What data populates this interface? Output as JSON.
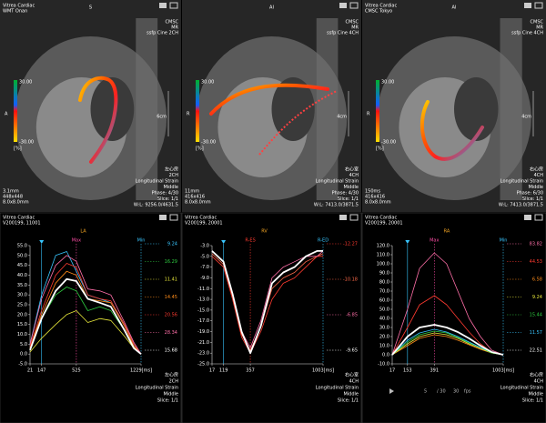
{
  "images": [
    {
      "header": [
        "Vitrea Cardiac",
        "WMT Onan"
      ],
      "orientation_top": "S",
      "orientation_left": "A",
      "info": [
        "CMSC",
        "MR",
        "ssfp Cine 2CH"
      ],
      "colorbar": [
        "30.00",
        "-30.00",
        "[%]"
      ],
      "scale": "6cm",
      "info_left": [
        "3.1mm",
        "448x448",
        "8.0x8.0mm"
      ],
      "controls": [
        "左心房",
        "2CH",
        "Longitudinal Strain",
        "Middle",
        "Phase: 4/30",
        "Slice: 1/1",
        "W:L: 9256.0/4631.5"
      ]
    },
    {
      "header": [],
      "orientation_top": "AI",
      "orientation_left": "R",
      "info": [
        "CMSC",
        "MR",
        "ssfp Cine 4CH"
      ],
      "colorbar": [
        "30.00",
        "-30.00",
        "[%]"
      ],
      "scale": "4cm",
      "info_left": [
        "11mm",
        "416x416",
        "8.0x8.0mm"
      ],
      "controls": [
        "右心室",
        "4CH",
        "Longitudinal Strain",
        "Middle",
        "Phase: 4/30",
        "Slice: 1/1",
        "W:L: 7413.0/3871.5"
      ]
    },
    {
      "header": [
        "Vitrea Cardiac",
        "CMSC Tokyo"
      ],
      "orientation_top": "AI",
      "orientation_left": "R",
      "info": [
        "CMSC",
        "MR",
        "ssfp Cine 4CH"
      ],
      "colorbar": [
        "30.00",
        "-30.00",
        "[%]"
      ],
      "scale": "4cm",
      "info_left": [
        "150ms",
        "416x416",
        "8.0x8.0mm"
      ],
      "controls": [
        "右心房",
        "4CH",
        "Longitudinal Strain",
        "Middle",
        "Phase: 6/30",
        "Slice: 1/1",
        "W:L: 7413.0/3871.5"
      ]
    }
  ],
  "chart_data": [
    {
      "type": "line",
      "title": "LA",
      "header": [
        "Vitrea Cardiac",
        "V200199, 11001"
      ],
      "x": [
        21,
        147,
        300,
        420,
        525,
        650,
        780,
        900,
        1050,
        1150,
        1229
      ],
      "xlim": [
        21,
        1229
      ],
      "xticks": [
        21,
        147,
        525,
        {
          "value": 1229,
          "label": "1229[ms]"
        }
      ],
      "ylim": [
        -5,
        55
      ],
      "yticks": [
        {
          "value": 55,
          "label": "55.0"
        },
        {
          "value": 50,
          "label": "50.0"
        },
        {
          "value": 45,
          "label": "45.0"
        },
        {
          "value": 40,
          "label": "40.0"
        },
        {
          "value": 35,
          "label": "35.0"
        },
        {
          "value": 30,
          "label": "30.0"
        },
        {
          "value": 25,
          "label": "25.0"
        },
        {
          "value": 20,
          "label": "20.0"
        },
        {
          "value": 15,
          "label": "15.0"
        },
        {
          "value": 10,
          "label": "10.0"
        },
        {
          "value": 5,
          "label": "5.0"
        },
        {
          "value": 0,
          "label": "0.0"
        },
        {
          "value": -5,
          "label": "-5.0"
        }
      ],
      "cursor": 147,
      "markers": [
        {
          "label": "Max",
          "x": 525,
          "color": "#ff4da6"
        },
        {
          "label": "Min",
          "x": 1229,
          "color": "#39c6ff"
        }
      ],
      "series": [
        {
          "name": "9.24",
          "color": "#39c6ff",
          "values": [
            5,
            30,
            50,
            52,
            42,
            30,
            28,
            26,
            15,
            5,
            0
          ]
        },
        {
          "name": "16.29",
          "color": "#2ecc40",
          "values": [
            2,
            18,
            30,
            34,
            32,
            22,
            24,
            22,
            12,
            4,
            0
          ]
        },
        {
          "name": "11.41",
          "color": "#e8e83a",
          "values": [
            1,
            8,
            15,
            20,
            22,
            16,
            18,
            17,
            9,
            3,
            0
          ]
        },
        {
          "name": "14.45",
          "color": "#ff8c1a",
          "values": [
            3,
            20,
            36,
            42,
            40,
            28,
            27,
            26,
            14,
            4,
            0
          ]
        },
        {
          "name": "20.56",
          "color": "#ff3b30",
          "values": [
            4,
            22,
            40,
            46,
            44,
            30,
            28,
            27,
            15,
            5,
            0
          ]
        },
        {
          "name": "28.34",
          "color": "#ff6fa8",
          "values": [
            5,
            28,
            45,
            50,
            47,
            33,
            32,
            30,
            16,
            6,
            0
          ]
        },
        {
          "name": "15.68",
          "color": "#ffffff",
          "values": [
            2,
            18,
            32,
            38,
            37,
            28,
            26,
            24,
            12,
            3,
            0
          ]
        }
      ],
      "footer": [
        "左心房",
        "2CH",
        "Longitudinal Strain",
        "Middle",
        "Slice: 1/1"
      ]
    },
    {
      "type": "line",
      "title": "RV",
      "header": [
        "Vitrea Cardiac",
        "V200199, 20001"
      ],
      "x": [
        17,
        119,
        200,
        280,
        357,
        450,
        550,
        650,
        750,
        850,
        950,
        1003
      ],
      "xlim": [
        17,
        1003
      ],
      "xticks": [
        17,
        119,
        357,
        {
          "value": 1003,
          "label": "1003[ms]"
        }
      ],
      "ylim": [
        -25,
        -3
      ],
      "yticks": [
        {
          "value": -3,
          "label": "-3.0"
        },
        {
          "value": -5,
          "label": "-5.0"
        },
        {
          "value": -7,
          "label": "-7.0"
        },
        {
          "value": -9,
          "label": "-9.0"
        },
        {
          "value": -11,
          "label": "-11.0"
        },
        {
          "value": -13,
          "label": "-13.0"
        },
        {
          "value": -15,
          "label": "-15.0"
        },
        {
          "value": -17,
          "label": "-17.0"
        },
        {
          "value": -19,
          "label": "-19.0"
        },
        {
          "value": -21,
          "label": "-21.0"
        },
        {
          "value": -23,
          "label": "-23.0"
        },
        {
          "value": -25,
          "label": "-25.0"
        }
      ],
      "cursor": 119,
      "markers": [
        {
          "label": "R-ES",
          "x": 357,
          "color": "#ff3b30"
        },
        {
          "label": "R-ED",
          "x": 1003,
          "color": "#39c6ff"
        }
      ],
      "series": [
        {
          "name": "-12.27",
          "color": "#ff3b30",
          "values": [
            -5,
            -7,
            -13,
            -20,
            -23,
            -19,
            -13,
            -10,
            -9,
            -7,
            -5,
            -5
          ]
        },
        {
          "name": "-10.18",
          "color": "#ff6a4a",
          "values": [
            -4.5,
            -6.5,
            -12.5,
            -19.5,
            -22.5,
            -18,
            -11,
            -9,
            -8,
            -6,
            -5,
            -4.5
          ]
        },
        {
          "name": "-6.85",
          "color": "#ff6fa8",
          "values": [
            -4,
            -6,
            -12,
            -19,
            -22,
            -17,
            -9,
            -7,
            -6,
            -5,
            -5,
            -4
          ]
        },
        {
          "name": "-9.65",
          "color": "#ffffff",
          "values": [
            -4,
            -6,
            -12,
            -19,
            -23,
            -18,
            -10,
            -8,
            -7,
            -5,
            -4,
            -4
          ]
        }
      ],
      "footer": [
        "右心室",
        "4CH",
        "Longitudinal Strain",
        "Middle",
        "Slice: 1/1"
      ]
    },
    {
      "type": "line",
      "title": "RA",
      "header": [
        "Vitrea Cardiac",
        "V200199, 20001"
      ],
      "x": [
        17,
        153,
        260,
        391,
        500,
        600,
        700,
        800,
        900,
        1003
      ],
      "xlim": [
        17,
        1003
      ],
      "xticks": [
        17,
        153,
        391,
        {
          "value": 1003,
          "label": "1003[ms]"
        }
      ],
      "ylim": [
        -10,
        120
      ],
      "yticks": [
        {
          "value": 120,
          "label": "120.0"
        },
        {
          "value": 110,
          "label": "110.0"
        },
        {
          "value": 100,
          "label": "100.0"
        },
        {
          "value": 90,
          "label": "90.0"
        },
        {
          "value": 80,
          "label": "80.0"
        },
        {
          "value": 70,
          "label": "70.0"
        },
        {
          "value": 60,
          "label": "60.0"
        },
        {
          "value": 50,
          "label": "50.0"
        },
        {
          "value": 40,
          "label": "40.0"
        },
        {
          "value": 30,
          "label": "30.0"
        },
        {
          "value": 20,
          "label": "20.0"
        },
        {
          "value": 10,
          "label": "10.0"
        },
        {
          "value": 0,
          "label": "0.0"
        },
        {
          "value": -10,
          "label": "-10.0"
        }
      ],
      "cursor": 153,
      "markers": [
        {
          "label": "Max",
          "x": 391,
          "color": "#ff4da6"
        },
        {
          "label": "Min",
          "x": 1003,
          "color": "#39c6ff"
        }
      ],
      "series": [
        {
          "name": "83.82",
          "color": "#ff6fa8",
          "values": [
            0,
            50,
            95,
            112,
            100,
            70,
            40,
            20,
            5,
            0
          ]
        },
        {
          "name": "44.53",
          "color": "#ff3b30",
          "values": [
            0,
            30,
            55,
            65,
            55,
            40,
            25,
            12,
            3,
            0
          ]
        },
        {
          "name": "6.58",
          "color": "#ff8c1a",
          "values": [
            0,
            10,
            18,
            22,
            20,
            16,
            11,
            6,
            2,
            0
          ]
        },
        {
          "name": "9.24",
          "color": "#e8e83a",
          "values": [
            0,
            12,
            20,
            24,
            22,
            18,
            12,
            7,
            2,
            0
          ]
        },
        {
          "name": "15.44",
          "color": "#2ecc40",
          "values": [
            0,
            14,
            22,
            26,
            24,
            19,
            13,
            8,
            2,
            0
          ]
        },
        {
          "name": "11.57",
          "color": "#39c6ff",
          "values": [
            0,
            16,
            24,
            28,
            25,
            20,
            14,
            8,
            3,
            0
          ]
        },
        {
          "name": "22.51",
          "color": "#ffffff",
          "values": [
            0,
            20,
            30,
            33,
            30,
            25,
            18,
            10,
            3,
            0
          ]
        }
      ],
      "playback": [
        "5",
        "/ 30",
        "30",
        "fps"
      ],
      "footer": [
        "右心房",
        "4CH",
        "Longitudinal Strain",
        "Middle",
        "Slice: 1/1"
      ]
    }
  ]
}
